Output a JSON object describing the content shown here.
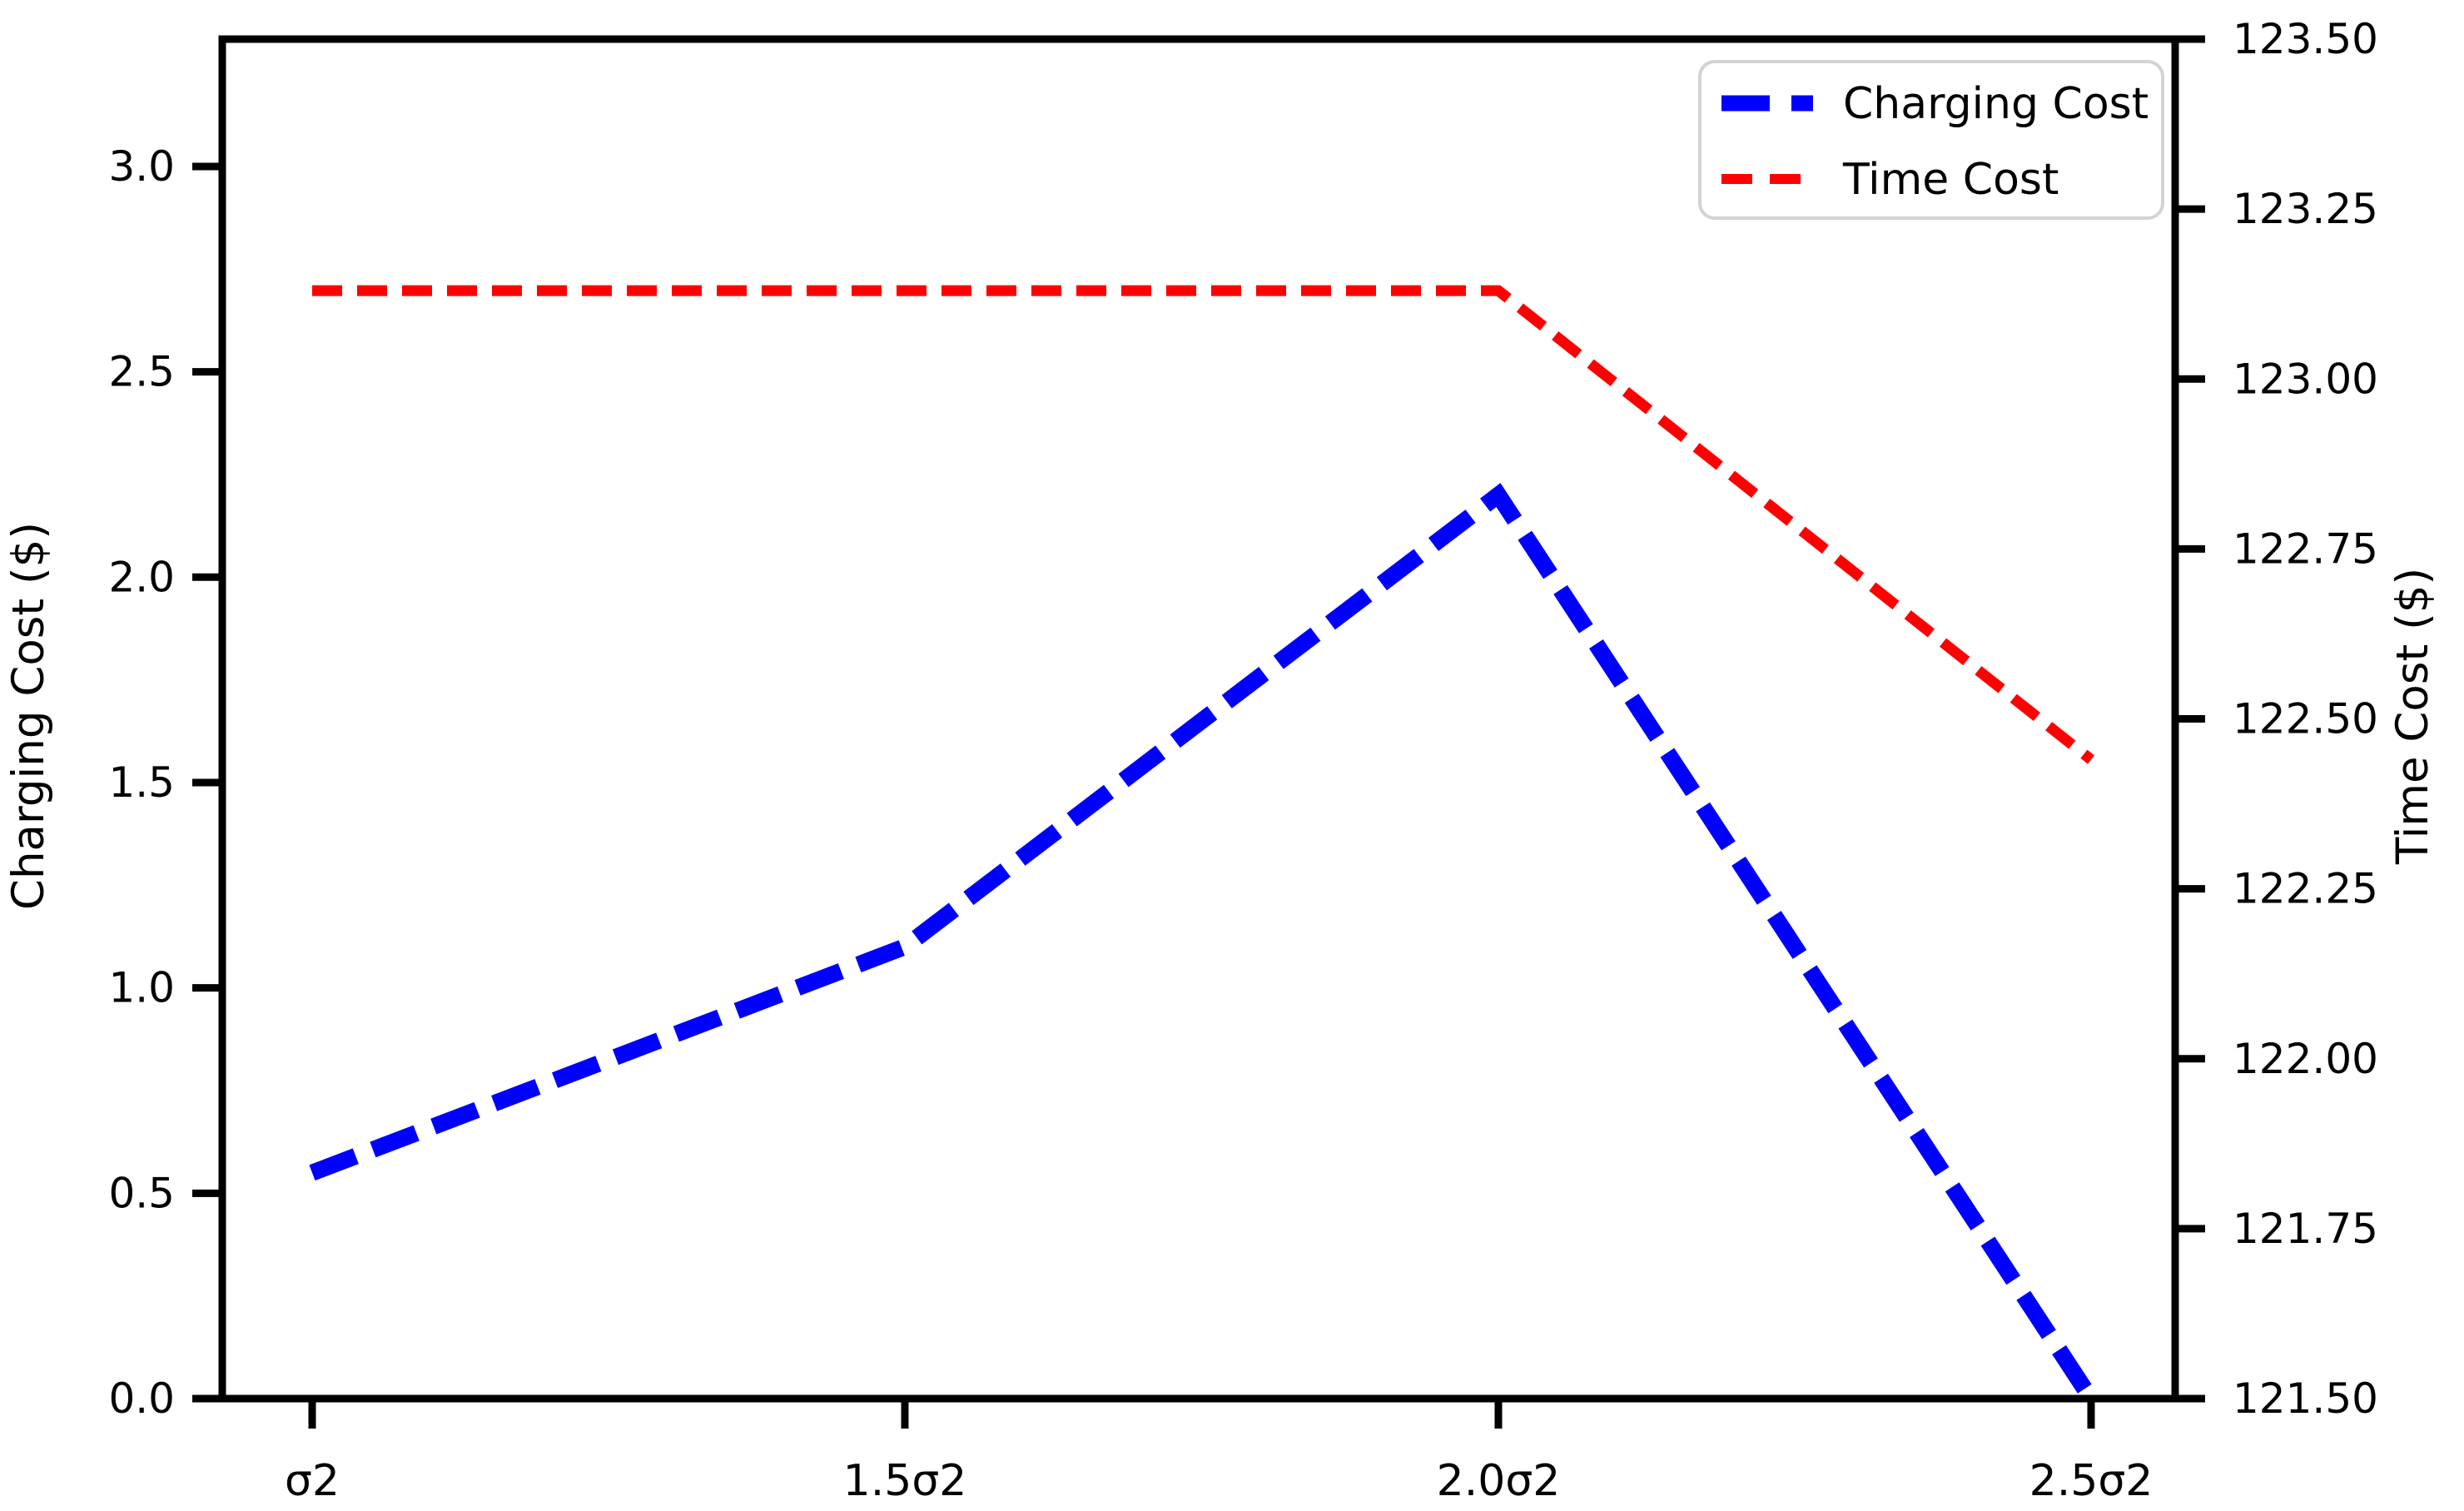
{
  "chart_data": {
    "type": "line",
    "title": "",
    "categories": [
      "σ2",
      "1.5σ2",
      "2.0σ2",
      "2.5σ2"
    ],
    "series": [
      {
        "name": "Charging Cost",
        "yaxis": "left",
        "color": "#0000ff",
        "linestyle": "dashed",
        "linewidth": 20,
        "dash_pattern": [
          56,
          22
        ],
        "values": [
          0.55,
          1.1,
          2.2,
          0.0
        ]
      },
      {
        "name": "Time Cost",
        "yaxis": "right",
        "color": "#ff0000",
        "linestyle": "dashed",
        "linewidth": 13,
        "dash_pattern": [
          36,
          18
        ],
        "values": [
          123.13,
          123.13,
          123.13,
          122.44
        ]
      }
    ],
    "x_axis": {
      "label": "",
      "tick_labels": [
        "σ2",
        "1.5σ2",
        "2.0σ2",
        "2.5σ2"
      ]
    },
    "left_axis": {
      "label": "Charging Cost ($)",
      "min": 0.0,
      "max": 3.31,
      "tick_values": [
        0.0,
        0.5,
        1.0,
        1.5,
        2.0,
        2.5,
        3.0
      ],
      "tick_labels": [
        "0.0",
        "0.5",
        "1.0",
        "1.5",
        "2.0",
        "2.5",
        "3.0"
      ]
    },
    "right_axis": {
      "label": "Time Cost ($)",
      "min": 121.5,
      "max": 123.5,
      "tick_values": [
        121.5,
        121.75,
        122.0,
        122.25,
        122.5,
        122.75,
        123.0,
        123.25,
        123.5
      ],
      "tick_labels": [
        "121.50",
        "121.75",
        "122.00",
        "122.25",
        "122.50",
        "122.75",
        "123.00",
        "123.25",
        "123.50"
      ]
    },
    "legend": {
      "location": "upper right",
      "entries": [
        "Charging Cost",
        "Time Cost"
      ],
      "border_color": "#d3d3d3",
      "background": "#ffffff"
    },
    "grid": false,
    "axis_color": "#000000",
    "background": "#ffffff"
  }
}
